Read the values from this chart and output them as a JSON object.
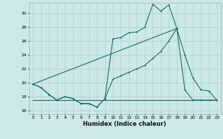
{
  "xlabel": "Humidex (Indice chaleur)",
  "bg_color": "#cce8e8",
  "grid_color": "#b0cccc",
  "line_color": "#1a6b6b",
  "x_ticks": [
    0,
    1,
    2,
    3,
    4,
    5,
    6,
    7,
    8,
    9,
    10,
    11,
    12,
    13,
    14,
    15,
    16,
    17,
    18,
    19,
    20,
    21,
    22,
    23
  ],
  "y_ticks": [
    16,
    18,
    20,
    22,
    24,
    26,
    28,
    30
  ],
  "xlim": [
    -0.5,
    23.5
  ],
  "ylim": [
    15.5,
    31.5
  ],
  "series1_x": [
    0,
    1,
    2,
    3,
    4,
    5,
    6,
    7,
    8,
    9,
    10,
    11,
    12,
    13,
    14,
    15,
    16,
    17,
    18,
    19,
    20,
    21,
    22,
    23
  ],
  "series1_y": [
    19.8,
    19.3,
    18.3,
    17.5,
    18.0,
    17.7,
    17.0,
    17.0,
    16.5,
    17.7,
    26.3,
    26.5,
    27.2,
    27.3,
    28.0,
    31.3,
    30.3,
    31.2,
    27.8,
    24.0,
    20.7,
    19.0,
    18.8,
    17.5
  ],
  "series2_x": [
    0,
    1,
    2,
    3,
    4,
    5,
    6,
    7,
    8,
    9,
    10,
    11,
    12,
    13,
    14,
    15,
    16,
    17,
    18,
    19,
    20,
    21,
    22,
    23
  ],
  "series2_y": [
    19.8,
    19.3,
    18.3,
    17.5,
    18.0,
    17.7,
    17.0,
    17.0,
    16.5,
    17.7,
    20.5,
    21.0,
    21.5,
    22.0,
    22.5,
    23.5,
    24.5,
    26.0,
    27.8,
    19.0,
    17.5,
    17.5,
    17.5,
    17.5
  ],
  "series3_x": [
    0,
    18
  ],
  "series3_y": [
    19.8,
    27.8
  ],
  "series4_x": [
    0,
    23
  ],
  "series4_y": [
    17.5,
    17.5
  ]
}
